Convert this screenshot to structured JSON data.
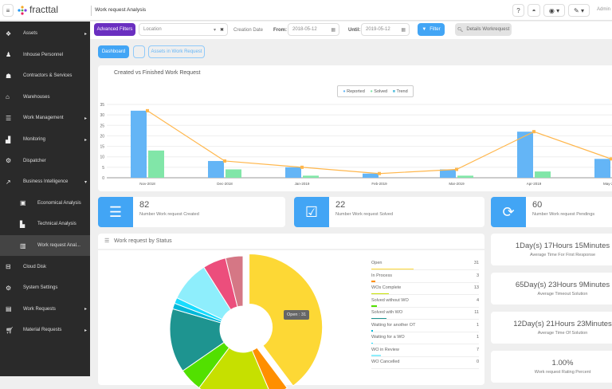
{
  "header": {
    "app_name": "fracttal",
    "page_title": "Work request Analysis",
    "help_label": "?",
    "user": "Admin"
  },
  "sidebar": {
    "items": [
      {
        "label": "Assets",
        "icon": "cubes-icon",
        "arrow": "right"
      },
      {
        "label": "Inhouse Personnel",
        "icon": "user-icon"
      },
      {
        "label": "Contractors & Services",
        "icon": "users-icon"
      },
      {
        "label": "Warehouses",
        "icon": "inbox-icon"
      },
      {
        "label": "Work Management",
        "icon": "list-icon",
        "arrow": "right"
      },
      {
        "label": "Monitoring",
        "icon": "signal-icon",
        "arrow": "right"
      },
      {
        "label": "Dispatcher",
        "icon": "gear-icon"
      },
      {
        "label": "Business Intelligence",
        "icon": "line-chart-icon",
        "arrow": "down"
      },
      {
        "label": "Economical Analysis",
        "icon": "money-icon",
        "sub": true
      },
      {
        "label": "Technical Analysis",
        "icon": "industry-icon",
        "sub": true
      },
      {
        "label": "Work request Anal...",
        "icon": "bar-chart-icon",
        "sub": true,
        "active": true
      },
      {
        "label": "Cloud Disk",
        "icon": "drive-icon"
      },
      {
        "label": "System Settings",
        "icon": "gear-icon"
      },
      {
        "label": "Work Requests",
        "icon": "card-icon",
        "arrow": "right"
      },
      {
        "label": "Material Requests",
        "icon": "cart-icon",
        "arrow": "right"
      }
    ]
  },
  "filters": {
    "advanced_label": "Advanced Filters",
    "location_placeholder": "Location",
    "creation_date_label": "Creation Date",
    "from_label": "From:",
    "from_value": "2018-05-12",
    "until_label": "Until:",
    "until_value": "2019-05-12",
    "filter_label": "Filter",
    "details_label": "Details Workrequest"
  },
  "tabs": {
    "dashboard": "Dashboard",
    "assets": "Assets in Work Request"
  },
  "chart_data": [
    {
      "type": "bar",
      "title": "Created vs Finished Work Request",
      "categories": [
        "Nov-2018",
        "Dec-2018",
        "Jan-2019",
        "Feb-2019",
        "Mar-2019",
        "Apr-2019",
        "May-2019"
      ],
      "series": [
        {
          "name": "Reported",
          "values": [
            32,
            8,
            5,
            2,
            4,
            22,
            9
          ],
          "color": "#64b5f6"
        },
        {
          "name": "Solved",
          "values": [
            13,
            4,
            1,
            0,
            1,
            3,
            null
          ],
          "color": "#81e6a8"
        },
        {
          "name": "Trend",
          "type": "line",
          "values": [
            32,
            8,
            5,
            2,
            4,
            22,
            9
          ],
          "color": "#ffb74d"
        }
      ],
      "ylim": [
        0,
        35
      ],
      "yticks": [
        0,
        5,
        10,
        15,
        20,
        25,
        30,
        35
      ],
      "legend": "top-center",
      "grid": true
    },
    {
      "type": "pie",
      "title": "Work request by Status",
      "tooltip": "Open : 31",
      "slices": [
        {
          "label": "Open",
          "value": 31,
          "color": "#fdd835"
        },
        {
          "label": "In Process",
          "value": 3,
          "color": "#ff8f00"
        },
        {
          "label": "WOs Complete",
          "value": 13,
          "color": "#c6e000"
        },
        {
          "label": "Solved without WO",
          "value": 4,
          "color": "#52e000"
        },
        {
          "label": "Solved with WO",
          "value": 11,
          "color": "#1e9490"
        },
        {
          "label": "Waiting for another OT",
          "value": 1,
          "color": "#00b8d9"
        },
        {
          "label": "Waiting for a WO",
          "value": 1,
          "color": "#18dcff"
        },
        {
          "label": "WO in Review",
          "value": 7,
          "color": "#8eeefc"
        },
        {
          "label": "WO Cancelled",
          "value": 0,
          "color": "#b0b0b0"
        },
        {
          "value": 4,
          "color": "#ec4e7c"
        },
        {
          "value": 3,
          "color": "#d57785"
        }
      ]
    }
  ],
  "stats": [
    {
      "value": "82",
      "label": "Number Work request Created",
      "icon": "list-icon"
    },
    {
      "value": "22",
      "label": "Number Work request Solved",
      "icon": "check-square-icon"
    },
    {
      "value": "60",
      "label": "Number Work request Pendings",
      "icon": "refresh-icon"
    }
  ],
  "kpis": [
    {
      "value": "1Day(s) 17Hours 15Minutes",
      "label": "Average Time For First Response"
    },
    {
      "value": "65Day(s) 23Hours 9Minutes",
      "label": "Average Timeout Solution"
    },
    {
      "value": "12Day(s) 21Hours 23Minutes",
      "label": "Average Time Of Solution"
    },
    {
      "value": "1.00%",
      "label": "Work request Rating Percent"
    }
  ]
}
